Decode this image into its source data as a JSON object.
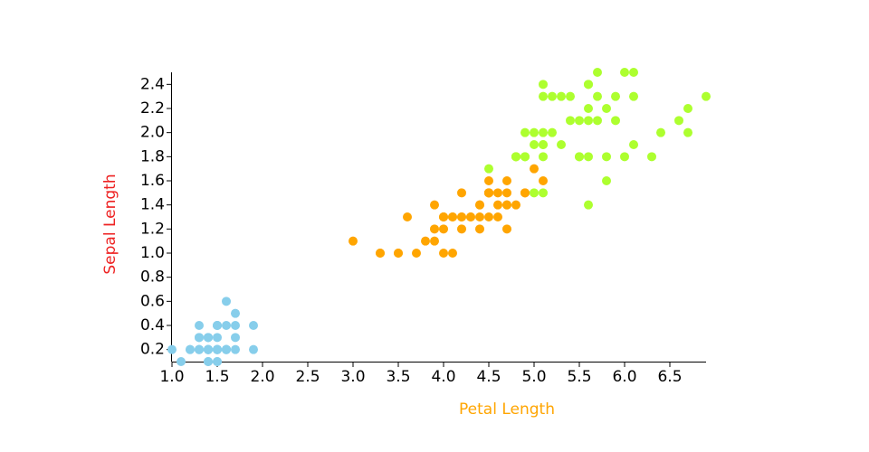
{
  "chart_data": {
    "type": "scatter",
    "xlabel": "Petal Length",
    "ylabel": "Sepal Length",
    "xlabel_color": "#ffa500",
    "ylabel_color": "#ee2222",
    "xlim": [
      1.0,
      6.9
    ],
    "ylim": [
      0.1,
      2.5
    ],
    "xticks": [
      {
        "value": 1,
        "label": "1.0"
      },
      1.5,
      {
        "value": 2,
        "label": "2.0"
      },
      2.5,
      {
        "value": 3,
        "label": "3.0"
      },
      3.5,
      {
        "value": 4,
        "label": "4.0"
      },
      4.5,
      {
        "value": 5,
        "label": "5.0"
      },
      5.5,
      {
        "value": 6,
        "label": "6.0"
      },
      6.5
    ],
    "yticks": [
      0.2,
      0.4,
      0.6,
      0.8,
      {
        "value": 1,
        "label": "1.0"
      },
      1.2,
      1.4,
      1.6,
      1.8,
      {
        "value": 2,
        "label": "2.0"
      },
      2.2,
      2.4
    ],
    "series": [
      {
        "color": "#87ceeb",
        "x": [
          1.4,
          1.4,
          1.3,
          1.5,
          1.4,
          1.7,
          1.4,
          1.5,
          1.4,
          1.5,
          1.5,
          1.6,
          1.4,
          1.1,
          1.2,
          1.5,
          1.3,
          1.4,
          1.7,
          1.5,
          1.7,
          1.5,
          1.0,
          1.7,
          1.9,
          1.6,
          1.6,
          1.5,
          1.4,
          1.6,
          1.6,
          1.5,
          1.5,
          1.4,
          1.5,
          1.2,
          1.3,
          1.4,
          1.3,
          1.5,
          1.3,
          1.3,
          1.3,
          1.6,
          1.9,
          1.4,
          1.6,
          1.4,
          1.5,
          1.4
        ],
        "values": [
          0.2,
          0.2,
          0.2,
          0.2,
          0.2,
          0.4,
          0.3,
          0.2,
          0.2,
          0.1,
          0.2,
          0.2,
          0.1,
          0.1,
          0.2,
          0.4,
          0.4,
          0.3,
          0.3,
          0.3,
          0.2,
          0.4,
          0.2,
          0.5,
          0.2,
          0.2,
          0.4,
          0.2,
          0.2,
          0.2,
          0.2,
          0.4,
          0.1,
          0.2,
          0.2,
          0.2,
          0.2,
          0.1,
          0.2,
          0.2,
          0.3,
          0.3,
          0.2,
          0.6,
          0.4,
          0.3,
          0.2,
          0.2,
          0.2,
          0.2
        ]
      },
      {
        "color": "#ffa500",
        "x": [
          4.7,
          4.5,
          4.9,
          4.0,
          4.6,
          4.5,
          4.7,
          3.3,
          4.6,
          3.9,
          3.5,
          4.2,
          4.0,
          4.7,
          3.6,
          4.4,
          4.5,
          4.1,
          4.5,
          3.9,
          4.8,
          4.0,
          4.9,
          4.7,
          4.3,
          4.4,
          4.8,
          5.0,
          4.5,
          3.5,
          3.8,
          3.7,
          3.9,
          5.1,
          4.5,
          4.5,
          4.7,
          4.4,
          4.1,
          4.0,
          4.4,
          4.6,
          4.0,
          3.3,
          4.2,
          4.2,
          4.2,
          4.3,
          3.0,
          4.1
        ],
        "values": [
          1.4,
          1.5,
          1.5,
          1.3,
          1.5,
          1.3,
          1.6,
          1.0,
          1.3,
          1.4,
          1.0,
          1.5,
          1.0,
          1.4,
          1.3,
          1.4,
          1.5,
          1.0,
          1.5,
          1.1,
          1.8,
          1.3,
          1.5,
          1.2,
          1.3,
          1.4,
          1.4,
          1.7,
          1.5,
          1.0,
          1.1,
          1.0,
          1.2,
          1.6,
          1.5,
          1.6,
          1.5,
          1.3,
          1.3,
          1.3,
          1.2,
          1.4,
          1.2,
          1.0,
          1.3,
          1.2,
          1.3,
          1.3,
          1.1,
          1.3
        ]
      },
      {
        "color": "#adff2f",
        "x": [
          6.0,
          5.1,
          5.9,
          5.6,
          5.8,
          6.6,
          4.5,
          6.3,
          5.8,
          6.1,
          5.1,
          5.3,
          5.5,
          5.0,
          5.1,
          5.3,
          5.5,
          6.7,
          6.9,
          5.0,
          5.7,
          4.9,
          6.7,
          4.9,
          5.7,
          6.0,
          4.8,
          4.9,
          5.6,
          5.8,
          6.1,
          6.4,
          5.6,
          5.1,
          5.6,
          6.1,
          5.6,
          5.5,
          4.8,
          5.4,
          5.6,
          5.1,
          5.1,
          5.9,
          5.7,
          5.2,
          5.0,
          5.2,
          5.4,
          5.1
        ],
        "values": [
          2.5,
          1.9,
          2.1,
          1.8,
          2.2,
          2.1,
          1.7,
          1.8,
          1.8,
          2.5,
          2.0,
          1.9,
          2.1,
          2.0,
          2.4,
          2.3,
          1.8,
          2.2,
          2.3,
          1.5,
          2.3,
          2.0,
          2.0,
          1.8,
          2.1,
          1.8,
          1.8,
          1.8,
          2.1,
          1.6,
          1.9,
          2.0,
          2.2,
          1.5,
          1.4,
          2.3,
          2.4,
          1.8,
          1.8,
          2.1,
          2.4,
          2.3,
          1.9,
          2.3,
          2.5,
          2.3,
          1.9,
          2.0,
          2.3,
          1.8
        ]
      }
    ]
  }
}
